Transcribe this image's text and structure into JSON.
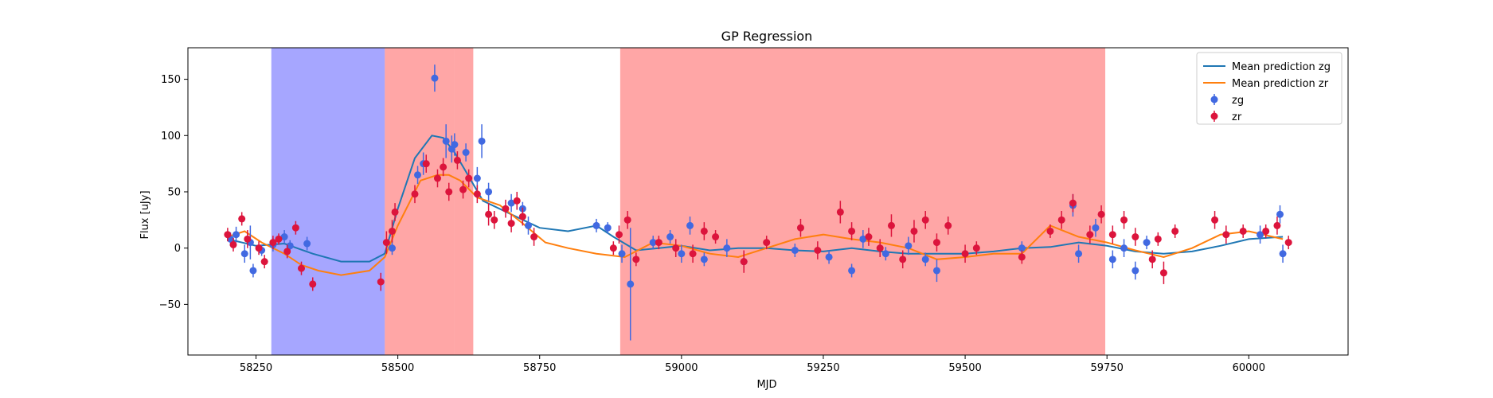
{
  "chart_data": {
    "type": "scatter",
    "title": "GP Regression",
    "xlabel": "MJD",
    "ylabel": "Flux [uJy]",
    "xlim": [
      58130,
      60175
    ],
    "ylim": [
      -95,
      178
    ],
    "xticks": [
      58250,
      58500,
      58750,
      59000,
      59250,
      59500,
      59750,
      60000
    ],
    "yticks": [
      -50,
      0,
      50,
      100,
      150
    ],
    "grid": false,
    "legend_position": "top-right",
    "shaded_regions": [
      {
        "x0": 58277,
        "x1": 58477,
        "color": "#0000ff",
        "opacity": 0.35
      },
      {
        "x0": 58477,
        "x1": 58600,
        "color": "#ff0000",
        "opacity": 0.35
      },
      {
        "x0": 58600,
        "x1": 58633,
        "color": "#ff0000",
        "opacity": 0.35
      },
      {
        "x0": 58892,
        "x1": 59747,
        "color": "#ff0000",
        "opacity": 0.35
      }
    ],
    "series": [
      {
        "name": "Mean prediction zg",
        "kind": "line",
        "color": "#1f77b4",
        "x": [
          58200,
          58250,
          58300,
          58350,
          58400,
          58450,
          58477,
          58500,
          58530,
          58560,
          58580,
          58600,
          58620,
          58650,
          58700,
          58750,
          58800,
          58850,
          58880,
          58920,
          58960,
          59000,
          59050,
          59100,
          59150,
          59200,
          59250,
          59300,
          59350,
          59400,
          59450,
          59500,
          59550,
          59600,
          59650,
          59700,
          59750,
          59800,
          59850,
          59900,
          59950,
          60000,
          60060
        ],
        "y": [
          8,
          2,
          4,
          -5,
          -12,
          -12,
          -5,
          35,
          80,
          100,
          98,
          85,
          68,
          42,
          30,
          18,
          15,
          20,
          10,
          -2,
          0,
          2,
          -2,
          0,
          0,
          -2,
          -3,
          0,
          -3,
          -5,
          -5,
          -5,
          -3,
          0,
          1,
          5,
          2,
          -3,
          -5,
          -3,
          2,
          8,
          10
        ]
      },
      {
        "name": "Mean prediction zr",
        "kind": "line",
        "color": "#ff7f0e",
        "x": [
          58200,
          58230,
          58260,
          58300,
          58330,
          58360,
          58400,
          58450,
          58477,
          58500,
          58540,
          58570,
          58590,
          58610,
          58640,
          58680,
          58720,
          58760,
          58800,
          58850,
          58900,
          58950,
          59000,
          59050,
          59100,
          59150,
          59200,
          59250,
          59300,
          59350,
          59400,
          59450,
          59500,
          59550,
          59600,
          59650,
          59700,
          59750,
          59800,
          59850,
          59900,
          59950,
          60000,
          60060
        ],
        "y": [
          10,
          15,
          5,
          -5,
          -15,
          -20,
          -24,
          -20,
          -8,
          20,
          60,
          65,
          65,
          60,
          45,
          38,
          22,
          5,
          0,
          -5,
          -8,
          5,
          2,
          -5,
          -8,
          0,
          8,
          12,
          8,
          5,
          0,
          -10,
          -8,
          -5,
          -5,
          20,
          10,
          5,
          -2,
          -8,
          0,
          12,
          15,
          8
        ]
      },
      {
        "name": "zg",
        "kind": "errorbar",
        "color": "#4169e1",
        "points": [
          [
            58205,
            8,
            6
          ],
          [
            58215,
            12,
            7
          ],
          [
            58230,
            -5,
            8
          ],
          [
            58240,
            5,
            15
          ],
          [
            58245,
            -20,
            6
          ],
          [
            58260,
            -2,
            5
          ],
          [
            58280,
            3,
            6
          ],
          [
            58300,
            10,
            6
          ],
          [
            58310,
            2,
            5
          ],
          [
            58340,
            4,
            6
          ],
          [
            58490,
            0,
            6
          ],
          [
            58535,
            65,
            8
          ],
          [
            58545,
            75,
            10
          ],
          [
            58565,
            151,
            12
          ],
          [
            58585,
            95,
            15
          ],
          [
            58595,
            88,
            12
          ],
          [
            58600,
            92,
            10
          ],
          [
            58620,
            85,
            8
          ],
          [
            58640,
            62,
            10
          ],
          [
            58648,
            95,
            15
          ],
          [
            58660,
            50,
            8
          ],
          [
            58700,
            40,
            8
          ],
          [
            58720,
            35,
            6
          ],
          [
            58730,
            20,
            8
          ],
          [
            58850,
            20,
            6
          ],
          [
            58870,
            18,
            5
          ],
          [
            58895,
            -5,
            8
          ],
          [
            58910,
            -32,
            50
          ],
          [
            58950,
            5,
            6
          ],
          [
            58980,
            10,
            6
          ],
          [
            59000,
            -5,
            8
          ],
          [
            59015,
            20,
            8
          ],
          [
            59040,
            -10,
            6
          ],
          [
            59080,
            0,
            8
          ],
          [
            59110,
            -12,
            6
          ],
          [
            59200,
            -2,
            6
          ],
          [
            59260,
            -8,
            6
          ],
          [
            59300,
            -20,
            6
          ],
          [
            59320,
            8,
            8
          ],
          [
            59360,
            -5,
            6
          ],
          [
            59400,
            2,
            8
          ],
          [
            59430,
            -10,
            6
          ],
          [
            59450,
            -20,
            10
          ],
          [
            59600,
            0,
            6
          ],
          [
            59690,
            38,
            10
          ],
          [
            59700,
            -5,
            8
          ],
          [
            59730,
            18,
            8
          ],
          [
            59760,
            -10,
            8
          ],
          [
            59780,
            0,
            8
          ],
          [
            59800,
            -20,
            8
          ],
          [
            59820,
            5,
            6
          ],
          [
            60020,
            12,
            8
          ],
          [
            60055,
            30,
            8
          ],
          [
            60060,
            -5,
            8
          ]
        ]
      },
      {
        "name": "zr",
        "kind": "errorbar",
        "color": "#dc143c",
        "points": [
          [
            58200,
            12,
            6
          ],
          [
            58210,
            3,
            6
          ],
          [
            58225,
            26,
            6
          ],
          [
            58235,
            8,
            8
          ],
          [
            58255,
            0,
            6
          ],
          [
            58265,
            -12,
            6
          ],
          [
            58280,
            5,
            6
          ],
          [
            58290,
            8,
            5
          ],
          [
            58305,
            -3,
            6
          ],
          [
            58320,
            18,
            6
          ],
          [
            58330,
            -18,
            6
          ],
          [
            58350,
            -32,
            6
          ],
          [
            58470,
            -30,
            8
          ],
          [
            58480,
            5,
            10
          ],
          [
            58490,
            15,
            10
          ],
          [
            58495,
            32,
            8
          ],
          [
            58530,
            48,
            8
          ],
          [
            58550,
            75,
            8
          ],
          [
            58570,
            62,
            8
          ],
          [
            58580,
            72,
            8
          ],
          [
            58590,
            50,
            8
          ],
          [
            58605,
            78,
            8
          ],
          [
            58615,
            52,
            8
          ],
          [
            58625,
            62,
            8
          ],
          [
            58640,
            48,
            8
          ],
          [
            58660,
            30,
            10
          ],
          [
            58670,
            25,
            8
          ],
          [
            58690,
            35,
            8
          ],
          [
            58700,
            22,
            8
          ],
          [
            58710,
            42,
            8
          ],
          [
            58720,
            28,
            8
          ],
          [
            58740,
            10,
            8
          ],
          [
            58880,
            0,
            6
          ],
          [
            58890,
            12,
            8
          ],
          [
            58905,
            25,
            8
          ],
          [
            58920,
            -10,
            6
          ],
          [
            58960,
            5,
            6
          ],
          [
            58990,
            0,
            8
          ],
          [
            59020,
            -5,
            8
          ],
          [
            59040,
            15,
            8
          ],
          [
            59060,
            10,
            6
          ],
          [
            59110,
            -12,
            10
          ],
          [
            59150,
            5,
            6
          ],
          [
            59210,
            18,
            8
          ],
          [
            59240,
            -2,
            8
          ],
          [
            59280,
            32,
            10
          ],
          [
            59300,
            15,
            8
          ],
          [
            59330,
            10,
            8
          ],
          [
            59350,
            0,
            8
          ],
          [
            59370,
            20,
            10
          ],
          [
            59390,
            -10,
            8
          ],
          [
            59410,
            15,
            10
          ],
          [
            59430,
            25,
            8
          ],
          [
            59450,
            5,
            8
          ],
          [
            59470,
            20,
            8
          ],
          [
            59500,
            -5,
            8
          ],
          [
            59520,
            0,
            6
          ],
          [
            59600,
            -8,
            6
          ],
          [
            59650,
            15,
            6
          ],
          [
            59670,
            25,
            8
          ],
          [
            59690,
            40,
            8
          ],
          [
            59720,
            12,
            8
          ],
          [
            59740,
            30,
            8
          ],
          [
            59760,
            12,
            8
          ],
          [
            59780,
            25,
            8
          ],
          [
            59800,
            10,
            8
          ],
          [
            59830,
            -10,
            8
          ],
          [
            59840,
            8,
            6
          ],
          [
            59850,
            -22,
            10
          ],
          [
            59870,
            15,
            6
          ],
          [
            59940,
            25,
            8
          ],
          [
            59960,
            12,
            8
          ],
          [
            59990,
            15,
            6
          ],
          [
            60030,
            15,
            6
          ],
          [
            60050,
            20,
            8
          ],
          [
            60070,
            5,
            6
          ]
        ]
      }
    ]
  }
}
